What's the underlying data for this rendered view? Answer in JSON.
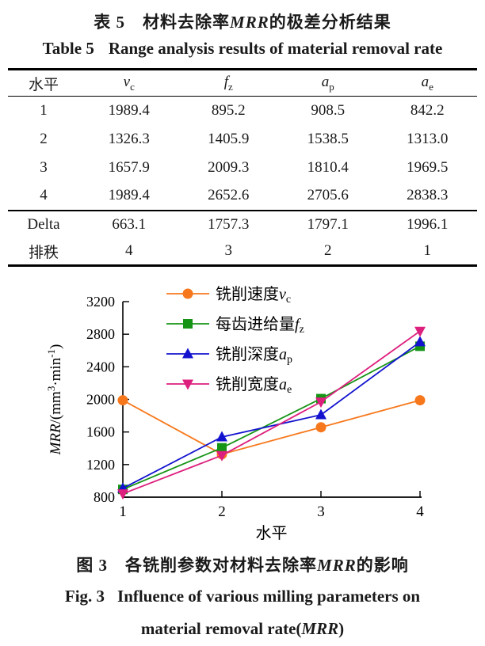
{
  "titles": {
    "zh": {
      "pre": "表 5　材料去除率",
      "em": "MRR",
      "post": "的极差分析结果"
    },
    "en": {
      "label": "Table 5",
      "text": "Range analysis results of material removal rate"
    }
  },
  "table": {
    "columns": [
      {
        "name": "水平",
        "parts": [
          {
            "t": "水平"
          }
        ]
      },
      {
        "name": "v_c",
        "parts": [
          {
            "t": "v",
            "i": true
          },
          {
            "t": "c",
            "sub": true
          }
        ]
      },
      {
        "name": "f_z",
        "parts": [
          {
            "t": "f",
            "i": true
          },
          {
            "t": "z",
            "sub": true
          }
        ]
      },
      {
        "name": "a_p",
        "parts": [
          {
            "t": "a",
            "i": true
          },
          {
            "t": "p",
            "sub": true
          }
        ]
      },
      {
        "name": "a_e",
        "parts": [
          {
            "t": "a",
            "i": true
          },
          {
            "t": "e",
            "sub": true
          }
        ]
      }
    ],
    "rows": [
      {
        "label": "1",
        "values": [
          "1989.4",
          "895.2",
          "908.5",
          "842.2"
        ]
      },
      {
        "label": "2",
        "values": [
          "1326.3",
          "1405.9",
          "1538.5",
          "1313.0"
        ]
      },
      {
        "label": "3",
        "values": [
          "1657.9",
          "2009.3",
          "1810.4",
          "1969.5"
        ]
      },
      {
        "label": "4",
        "values": [
          "1989.4",
          "2652.6",
          "2705.6",
          "2838.3"
        ]
      }
    ],
    "summary_rows": [
      {
        "label": "Delta",
        "values": [
          "663.1",
          "1757.3",
          "1797.1",
          "1996.1"
        ]
      },
      {
        "label": "排秩",
        "values": [
          "4",
          "3",
          "2",
          "1"
        ]
      }
    ]
  },
  "chart_data": {
    "type": "line",
    "x": [
      1,
      2,
      3,
      4
    ],
    "xlabel": "水平",
    "ylabel": "MRR/(mm³·min⁻¹)",
    "ylabel_parts": [
      {
        "t": "MRR",
        "i": true
      },
      {
        "t": "/(mm"
      },
      {
        "t": "3",
        "sup": true
      },
      {
        "t": "·min"
      },
      {
        "t": "-1",
        "sup": true
      },
      {
        "t": ")"
      }
    ],
    "ylim": [
      800,
      3200
    ],
    "yticks": [
      800,
      1200,
      1600,
      2000,
      2400,
      2800,
      3200
    ],
    "xticks": [
      "1",
      "2",
      "3",
      "4"
    ],
    "grid": false,
    "legend_position": "inside-top-left",
    "series": [
      {
        "name": "铣削速度v_c",
        "marker": "circle",
        "color": "#f7781c",
        "label_parts": [
          {
            "t": "铣削速度"
          },
          {
            "t": "v",
            "i": true
          },
          {
            "t": "c",
            "sub": true
          }
        ],
        "values": [
          1989.4,
          1326.3,
          1657.9,
          1989.4
        ]
      },
      {
        "name": "每齿进给量f_z",
        "marker": "square",
        "color": "#169416",
        "label_parts": [
          {
            "t": "每齿进给量"
          },
          {
            "t": "f",
            "i": true
          },
          {
            "t": "z",
            "sub": true
          }
        ],
        "values": [
          895.2,
          1405.9,
          2009.3,
          2652.6
        ]
      },
      {
        "name": "铣削深度a_p",
        "marker": "triangle-up",
        "color": "#1313cf",
        "label_parts": [
          {
            "t": "铣削深度"
          },
          {
            "t": "a",
            "i": true
          },
          {
            "t": "p",
            "sub": true
          }
        ],
        "values": [
          908.5,
          1538.5,
          1810.4,
          2705.6
        ]
      },
      {
        "name": "铣削宽度a_e",
        "marker": "triangle-down",
        "color": "#dd1f7d",
        "label_parts": [
          {
            "t": "铣削宽度"
          },
          {
            "t": "a",
            "i": true
          },
          {
            "t": "e",
            "sub": true
          }
        ],
        "values": [
          842.2,
          1313.0,
          1969.5,
          2838.3
        ]
      }
    ]
  },
  "captions": {
    "zh": {
      "pre": "图 3　各铣削参数对材料去除率",
      "em": "MRR",
      "post": "的影响"
    },
    "en": {
      "label": "Fig. 3",
      "line1": "Influence of various milling parameters on",
      "line2_pre": "material removal rate(",
      "line2_em": "MRR",
      "line2_post": ")"
    }
  }
}
